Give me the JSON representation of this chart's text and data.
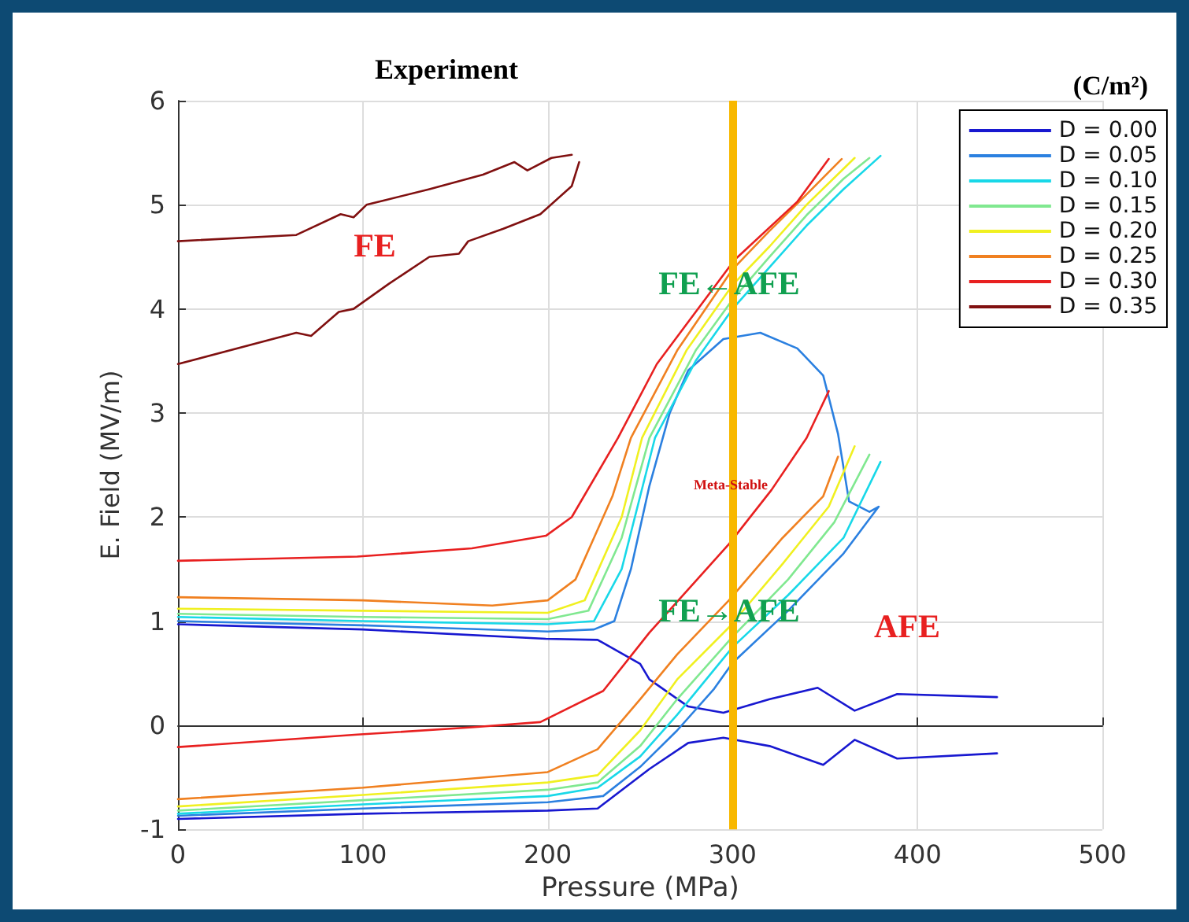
{
  "chart_data": {
    "type": "line",
    "title": "Experiment",
    "xlabel": "Pressure (MPa)",
    "ylabel": "E. Field (MV/m)",
    "legend_title": "(C/m²)",
    "xlim": [
      0,
      500
    ],
    "xticks": [
      0,
      100,
      200,
      300,
      400,
      500
    ],
    "ylim": [
      -1,
      6
    ],
    "yticks": [
      -1,
      0,
      1,
      2,
      3,
      4,
      5,
      6
    ],
    "grid": true,
    "legend": "top right",
    "marker": "none",
    "line_style": "solid",
    "ref_lines": [
      {
        "axis": "x",
        "value": 300,
        "color": "#f8b800"
      }
    ],
    "annotations": [
      "FE",
      "FE←AFE",
      "Meta-Stable",
      "FE→AFE",
      "AFE"
    ],
    "series": [
      {
        "name": "D = 0.00",
        "color": "#1818d0",
        "x": [
          0,
          100,
          200,
          227,
          255,
          276,
          295,
          320,
          349,
          366,
          389,
          443
        ],
        "values": [
          -0.9,
          -0.85,
          -0.82,
          -0.8,
          -0.42,
          -0.17,
          -0.12,
          -0.2,
          -0.38,
          -0.14,
          -0.32,
          -0.27
        ]
      },
      {
        "color": "#1818d0",
        "x": [
          0,
          100,
          199,
          227,
          250,
          255,
          276,
          295,
          320,
          346,
          366,
          389,
          443
        ],
        "values": [
          0.97,
          0.92,
          0.83,
          0.82,
          0.59,
          0.44,
          0.18,
          0.12,
          0.25,
          0.36,
          0.14,
          0.3,
          0.27
        ]
      },
      {
        "name": "D = 0.05",
        "color": "#2b80e0",
        "x": [
          0,
          100,
          200,
          230,
          250,
          270,
          290,
          300,
          330,
          360,
          379,
          374,
          363,
          357,
          349,
          335,
          315,
          295,
          276,
          266,
          255,
          245,
          236,
          225,
          200,
          100,
          0
        ],
        "values": [
          -0.87,
          -0.8,
          -0.74,
          -0.68,
          -0.4,
          -0.05,
          0.35,
          0.6,
          1.1,
          1.65,
          2.1,
          2.05,
          2.15,
          2.8,
          3.36,
          3.62,
          3.77,
          3.71,
          3.41,
          3.0,
          2.3,
          1.5,
          1.0,
          0.92,
          0.9,
          0.96,
          1.0
        ]
      },
      {
        "name": "D = 0.10",
        "color": "#18d8e8",
        "x": [
          0,
          100,
          200,
          227,
          250,
          270,
          300,
          330,
          360,
          380
        ],
        "values": [
          -0.85,
          -0.76,
          -0.68,
          -0.6,
          -0.3,
          0.1,
          0.75,
          1.25,
          1.8,
          2.53
        ]
      },
      {
        "color": "#18d8e8",
        "x": [
          0,
          100,
          200,
          225,
          240,
          250,
          258,
          280,
          300,
          320,
          340,
          360,
          380
        ],
        "values": [
          1.04,
          1.0,
          0.97,
          1.0,
          1.5,
          2.2,
          2.76,
          3.5,
          4.0,
          4.4,
          4.8,
          5.15,
          5.47
        ]
      },
      {
        "name": "D = 0.15",
        "color": "#80e890",
        "x": [
          0,
          100,
          200,
          227,
          250,
          270,
          300,
          330,
          355,
          374
        ],
        "values": [
          -0.82,
          -0.72,
          -0.62,
          -0.55,
          -0.2,
          0.25,
          0.85,
          1.4,
          1.95,
          2.6
        ]
      },
      {
        "color": "#80e890",
        "x": [
          0,
          100,
          200,
          222,
          240,
          255,
          280,
          300,
          320,
          340,
          360,
          374
        ],
        "values": [
          1.07,
          1.04,
          1.02,
          1.1,
          1.8,
          2.76,
          3.6,
          4.09,
          4.5,
          4.9,
          5.25,
          5.45
        ]
      },
      {
        "name": "D = 0.20",
        "color": "#f0f020",
        "x": [
          0,
          100,
          200,
          227,
          250,
          270,
          298,
          327,
          352,
          366
        ],
        "values": [
          -0.78,
          -0.67,
          -0.55,
          -0.48,
          -0.05,
          0.44,
          0.94,
          1.55,
          2.1,
          2.68
        ]
      },
      {
        "color": "#f0f020",
        "x": [
          0,
          100,
          200,
          220,
          240,
          251,
          275,
          300,
          320,
          340,
          366
        ],
        "values": [
          1.12,
          1.1,
          1.08,
          1.2,
          2.0,
          2.76,
          3.6,
          4.23,
          4.6,
          5.0,
          5.45
        ]
      },
      {
        "name": "D = 0.25",
        "color": "#f08020",
        "x": [
          0,
          100,
          200,
          227,
          250,
          270,
          298,
          327,
          349,
          357
        ],
        "values": [
          -0.71,
          -0.6,
          -0.45,
          -0.23,
          0.25,
          0.68,
          1.2,
          1.8,
          2.2,
          2.58
        ]
      },
      {
        "color": "#f08020",
        "x": [
          0,
          100,
          170,
          200,
          215,
          235,
          245,
          270,
          300,
          320,
          340,
          359
        ],
        "values": [
          1.23,
          1.2,
          1.15,
          1.2,
          1.4,
          2.2,
          2.76,
          3.6,
          4.38,
          4.75,
          5.1,
          5.44
        ]
      },
      {
        "name": "D = 0.30",
        "color": "#e82020",
        "x": [
          0,
          97,
          159,
          196,
          230,
          255,
          298,
          321,
          340,
          352
        ],
        "values": [
          -0.21,
          -0.09,
          -0.02,
          0.03,
          0.33,
          0.89,
          1.74,
          2.26,
          2.76,
          3.21
        ]
      },
      {
        "color": "#e82020",
        "x": [
          0,
          97,
          159,
          199,
          213,
          238,
          259,
          301,
          335,
          352
        ],
        "values": [
          1.58,
          1.62,
          1.7,
          1.82,
          2.0,
          2.76,
          3.47,
          4.47,
          5.03,
          5.44
        ]
      },
      {
        "name": "D = 0.35",
        "color": "#801010",
        "x": [
          0,
          64,
          72,
          87,
          95,
          114,
          136,
          152,
          157,
          176,
          196,
          213,
          217
        ],
        "values": [
          3.47,
          3.77,
          3.74,
          3.97,
          4.0,
          4.24,
          4.5,
          4.53,
          4.65,
          4.77,
          4.91,
          5.18,
          5.41
        ]
      },
      {
        "color": "#801010",
        "x": [
          0,
          64,
          88,
          95,
          102,
          136,
          165,
          182,
          189,
          202,
          213
        ],
        "values": [
          4.65,
          4.71,
          4.91,
          4.88,
          5.0,
          5.15,
          5.29,
          5.41,
          5.33,
          5.45,
          5.48
        ]
      }
    ]
  }
}
